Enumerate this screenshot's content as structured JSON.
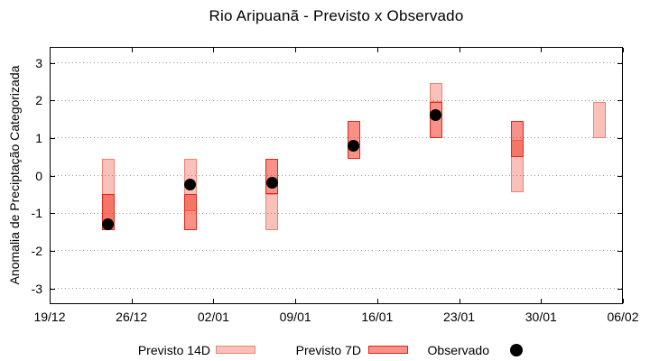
{
  "window": {
    "title": "Rio Aripuanã - Previsto x Observado"
  },
  "chart_data": {
    "type": "candlestick-range",
    "title": "Rio Aripuanã - Previsto x Observado",
    "xlabel": "",
    "ylabel": "Anomalia de Preciptação Categorizada",
    "ylim": [
      -3.42,
      3.42
    ],
    "yticks": [
      -3,
      -2,
      -1,
      0,
      1,
      2,
      3
    ],
    "xticklabels": [
      "19/12",
      "26/12",
      "02/01",
      "09/01",
      "16/01",
      "23/01",
      "30/01",
      "06/02"
    ],
    "x_total_days": 49,
    "grid": "horizontal-dotted-gray",
    "legend_position": "bottom-outside",
    "colors": {
      "previsto_14d_fill": "rgba(240,92,72,0.38)",
      "previsto_14d_border": "#ee8373",
      "previsto_7d_fill": "rgba(242,57,39,0.55)",
      "previsto_7d_border": "#e52517",
      "observado": "#000000",
      "grid": "#9a9a9a"
    },
    "series": [
      {
        "name": "Previsto 14D",
        "type": "range-box",
        "points": [
          {
            "date": "24/12",
            "day": 5,
            "low": -1.45,
            "high": 0.45
          },
          {
            "date": "31/12",
            "day": 12,
            "low": -0.95,
            "high": 0.45
          },
          {
            "date": "07/01",
            "day": 19,
            "low": -1.45,
            "high": -0.5
          },
          {
            "date": "21/01",
            "day": 33,
            "low": 1.95,
            "high": 2.45
          },
          {
            "date": "28/01",
            "day": 40,
            "low": -0.45,
            "high": 0.95
          },
          {
            "date": "04/02",
            "day": 47,
            "low": 1.0,
            "high": 1.95
          }
        ]
      },
      {
        "name": "Previsto 7D",
        "type": "range-box",
        "points": [
          {
            "date": "24/12",
            "day": 5,
            "low": -1.45,
            "high": -0.5
          },
          {
            "date": "31/12",
            "day": 12,
            "low": -1.45,
            "high": -0.5
          },
          {
            "date": "07/01",
            "day": 19,
            "low": -0.5,
            "high": 0.45
          },
          {
            "date": "14/01",
            "day": 26,
            "low": 0.45,
            "high": 1.45
          },
          {
            "date": "21/01",
            "day": 33,
            "low": 1.0,
            "high": 1.95
          },
          {
            "date": "28/01",
            "day": 40,
            "low": 0.5,
            "high": 1.45
          }
        ]
      },
      {
        "name": "Observado",
        "type": "scatter",
        "points": [
          {
            "date": "24/12",
            "day": 5,
            "value": -1.3
          },
          {
            "date": "31/12",
            "day": 12,
            "value": -0.25
          },
          {
            "date": "07/01",
            "day": 19,
            "value": -0.2
          },
          {
            "date": "14/01",
            "day": 26,
            "value": 0.8
          },
          {
            "date": "21/01",
            "day": 33,
            "value": 1.6
          }
        ]
      }
    ]
  },
  "legend": {
    "items": [
      {
        "label": "Previsto 14D",
        "marker": "light-pink-box"
      },
      {
        "label": "Previsto 7D",
        "marker": "red-box"
      },
      {
        "label": "Observado",
        "marker": "black-dot"
      }
    ]
  }
}
